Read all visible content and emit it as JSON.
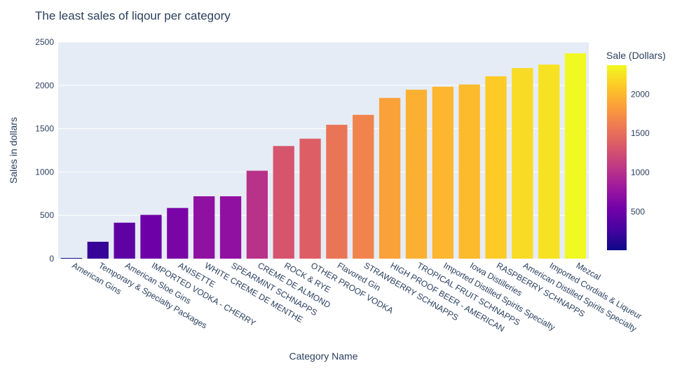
{
  "chart_data": {
    "type": "bar",
    "title": "The least sales of liqour per category",
    "xlabel": "Category Name",
    "ylabel": "Sales in dollars",
    "ylim": [
      0,
      2500
    ],
    "yticks": [
      0,
      500,
      1000,
      1500,
      2000,
      2500
    ],
    "categories": [
      "American Gins",
      "Temporary &  Specialty Packages",
      "American Sloe Gins",
      "IMPORTED VODKA - CHERRY",
      "ANISETTE",
      "WHITE CREME DE MENTHE",
      "SPEARMINT SCHNAPPS",
      "CREME DE ALMOND",
      "ROCK & RYE",
      "OTHER PROOF VODKA",
      "Flavored Gin",
      "STRAWBERRY SCHNAPPS",
      "HIGH PROOF BEER - AMERICAN",
      "TROPICAL FRUIT SCHNAPPS",
      "Imported Distilled Spirits Specialty",
      "Iowa Distilleries",
      "RASPBERRY SCHNAPPS",
      "American Distilled Spirits Specialty",
      "Imported Cordials & Liqueur",
      "Mezcal"
    ],
    "values": [
      8,
      195,
      415,
      505,
      585,
      720,
      720,
      1015,
      1300,
      1385,
      1545,
      1660,
      1855,
      1950,
      1985,
      2010,
      2105,
      2200,
      2240,
      2370
    ],
    "colorbar": {
      "title": "Sale (Dollars)",
      "ticks": [
        500,
        1000,
        1500,
        2000
      ],
      "cmin": 8,
      "cmax": 2370
    },
    "colorscale": [
      "#0d0887",
      "#46039f",
      "#7201a8",
      "#9c179e",
      "#bd3786",
      "#d8576b",
      "#ed7953",
      "#fb9f3a",
      "#fdca26",
      "#f0f921"
    ],
    "plot_background": "#e5ecf6",
    "grid": true,
    "legend": "colorbar-right"
  }
}
